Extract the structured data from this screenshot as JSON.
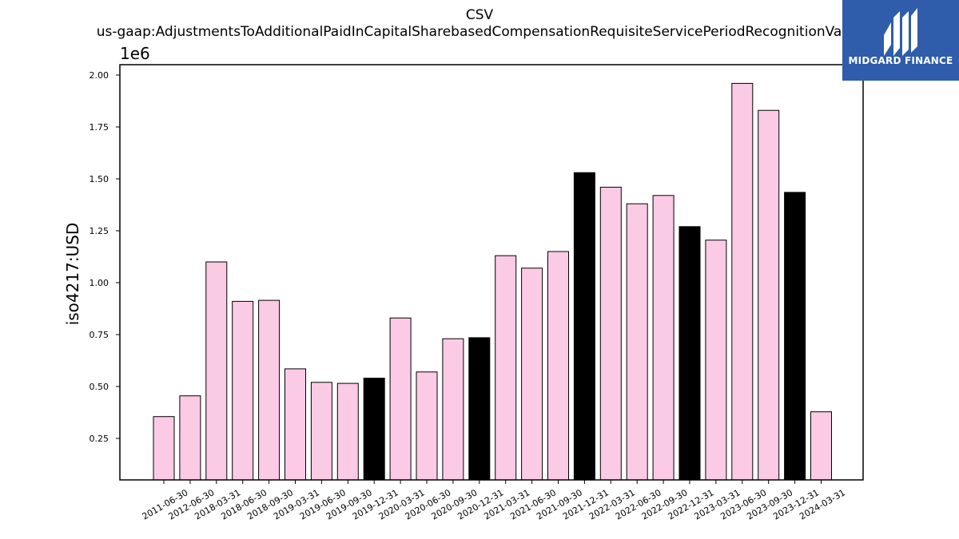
{
  "chart_data": {
    "type": "bar",
    "title": "CSV",
    "subtitle": "us-gaap:AdjustmentsToAdditionalPaidInCapitalSharebasedCompensationRequisiteServicePeriodRecognitionValue",
    "ylabel": "iso4217:USD",
    "y_exponent_label": "1e6",
    "ylim": [
      50000,
      2050000
    ],
    "yticks": [
      "0.25",
      "0.50",
      "0.75",
      "1.00",
      "1.25",
      "1.50",
      "1.75",
      "2.00"
    ],
    "ytick_values": [
      250000,
      500000,
      750000,
      1000000,
      1250000,
      1500000,
      1750000,
      2000000
    ],
    "grid": false,
    "categories": [
      "2011-06-30",
      "2012-06-30",
      "2018-03-31",
      "2018-06-30",
      "2018-09-30",
      "2019-03-31",
      "2019-06-30",
      "2019-09-30",
      "2019-12-31",
      "2020-03-31",
      "2020-06-30",
      "2020-09-30",
      "2020-12-31",
      "2021-03-31",
      "2021-06-30",
      "2021-09-30",
      "2021-12-31",
      "2022-03-31",
      "2022-06-30",
      "2022-09-30",
      "2022-12-31",
      "2023-03-31",
      "2023-06-30",
      "2023-09-30",
      "2023-12-31",
      "2024-03-31"
    ],
    "values": [
      355000,
      455000,
      1100000,
      910000,
      915000,
      585000,
      520000,
      515000,
      540000,
      830000,
      570000,
      730000,
      735000,
      1130000,
      1070000,
      1150000,
      1530000,
      1460000,
      1380000,
      1420000,
      1270000,
      1205000,
      1960000,
      1830000,
      1435000,
      378000
    ],
    "bar_colors": [
      "#fbcae4",
      "#fbcae4",
      "#fbcae4",
      "#fbcae4",
      "#fbcae4",
      "#fbcae4",
      "#fbcae4",
      "#fbcae4",
      "#000000",
      "#fbcae4",
      "#fbcae4",
      "#fbcae4",
      "#000000",
      "#fbcae4",
      "#fbcae4",
      "#fbcae4",
      "#000000",
      "#fbcae4",
      "#fbcae4",
      "#fbcae4",
      "#000000",
      "#fbcae4",
      "#fbcae4",
      "#fbcae4",
      "#000000",
      "#fbcae4"
    ]
  },
  "logo": {
    "text": "MIDGARD FINANCE",
    "icon": "midgard-logo-icon",
    "background": "#2f5cab"
  }
}
